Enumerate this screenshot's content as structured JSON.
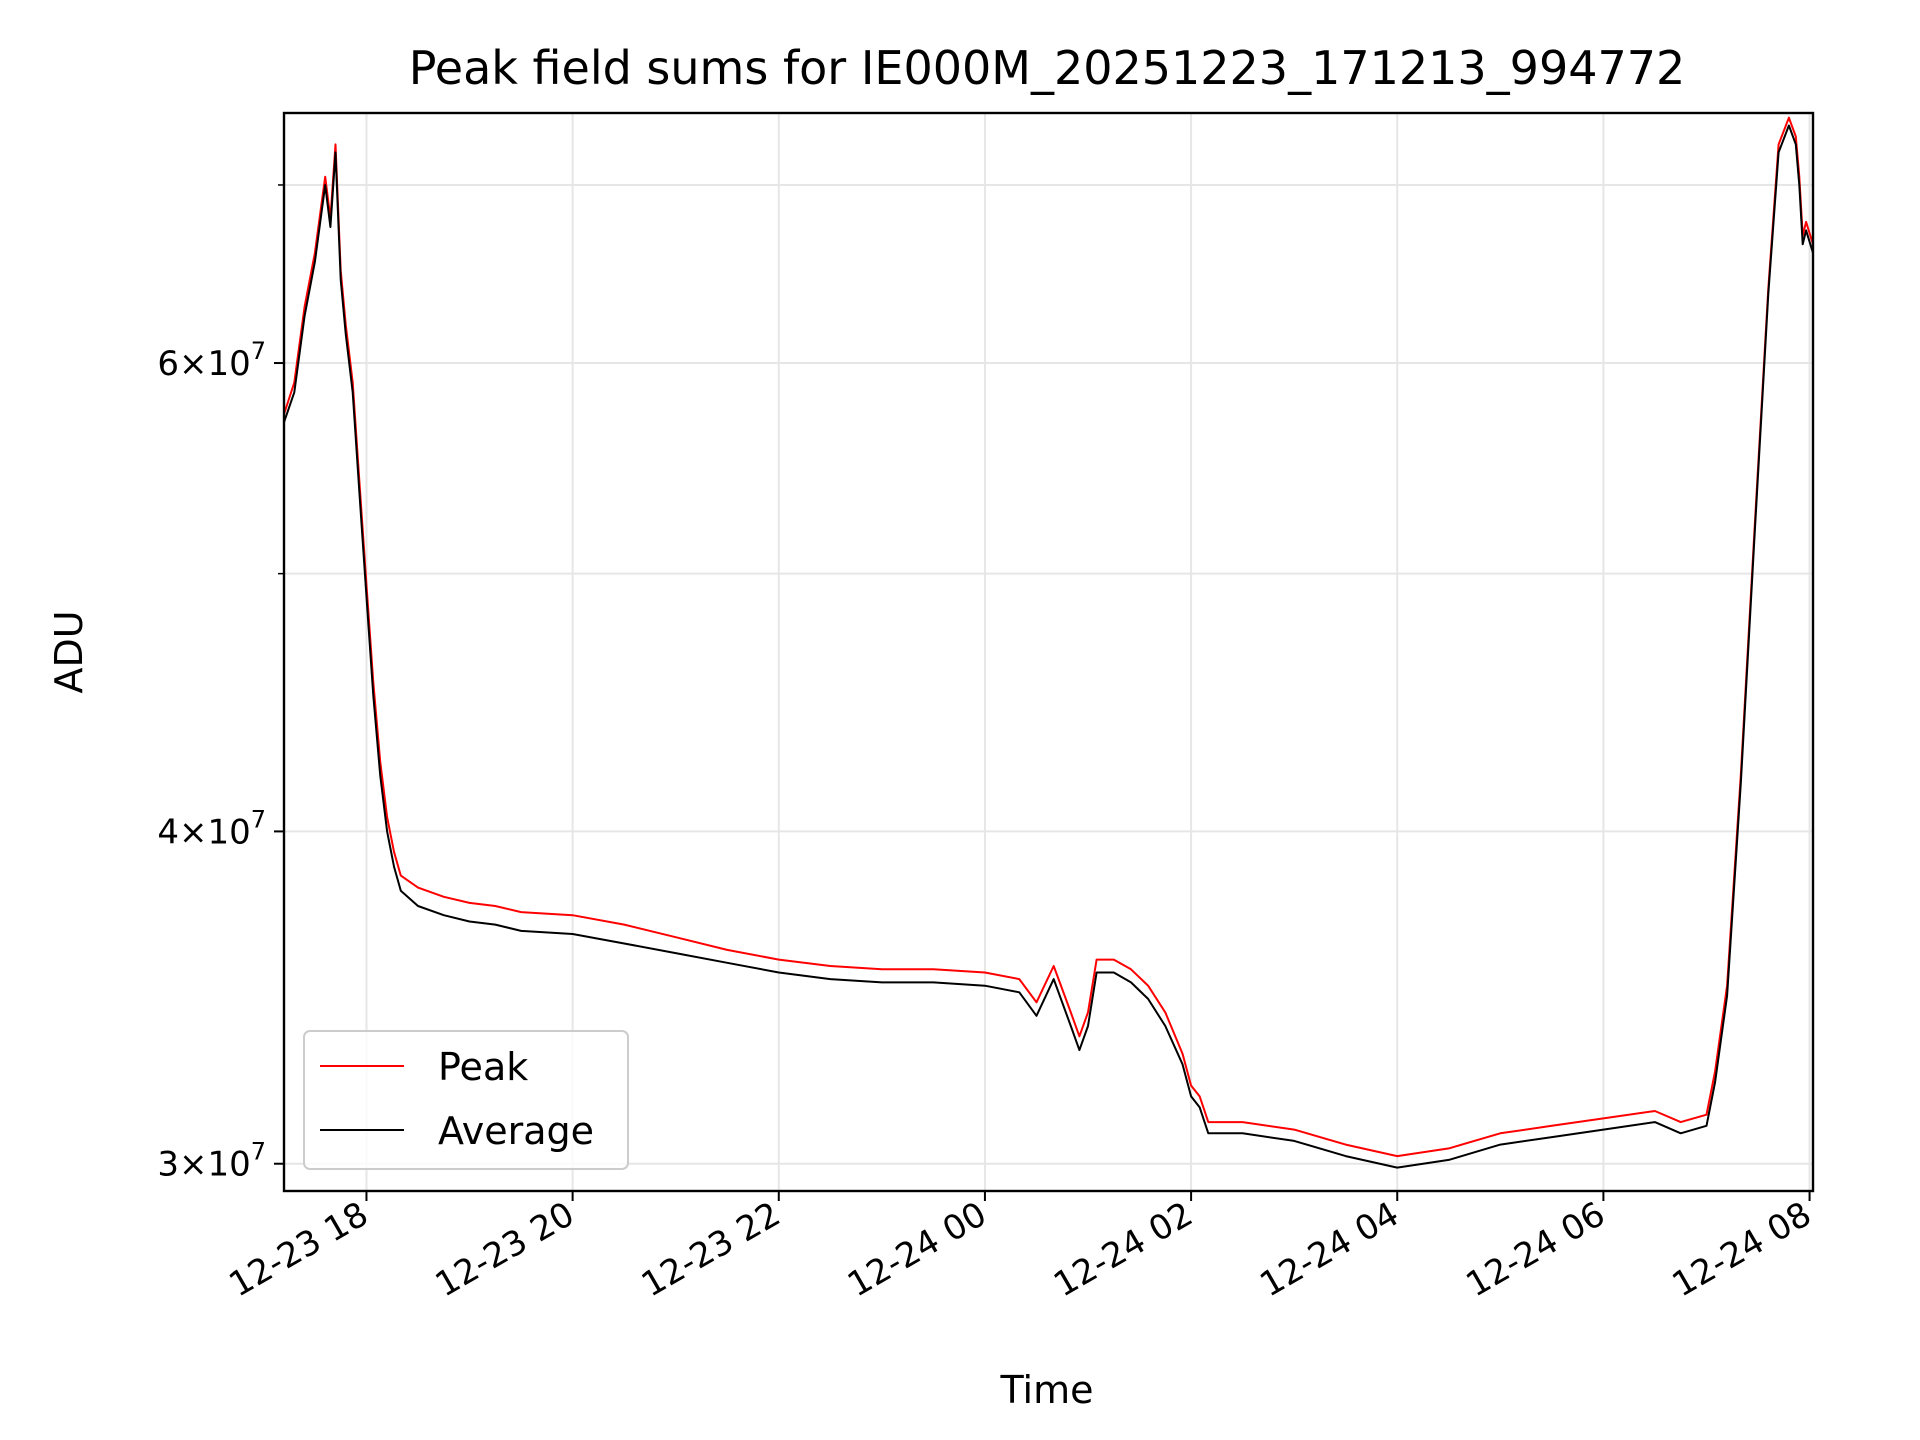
{
  "chart_data": {
    "type": "line",
    "title": "Peak field sums for IE000M_20251223_171213_994772",
    "xlabel": "Time",
    "ylabel": "ADU",
    "y_scale": "log",
    "grid": true,
    "legend_position": "lower-left",
    "xlim": [
      "2025-12-23 17:12",
      "2025-12-24 08:02"
    ],
    "ylim": [
      29300000,
      74500000
    ],
    "x_ticks": [
      {
        "t": "2025-12-23 18:00",
        "label": "12-23 18"
      },
      {
        "t": "2025-12-23 20:00",
        "label": "12-23 20"
      },
      {
        "t": "2025-12-23 22:00",
        "label": "12-23 22"
      },
      {
        "t": "2025-12-24 00:00",
        "label": "12-24 00"
      },
      {
        "t": "2025-12-24 02:00",
        "label": "12-24 02"
      },
      {
        "t": "2025-12-24 04:00",
        "label": "12-24 04"
      },
      {
        "t": "2025-12-24 06:00",
        "label": "12-24 06"
      },
      {
        "t": "2025-12-24 08:00",
        "label": "12-24 08"
      }
    ],
    "y_major_ticks": [
      {
        "value": 30000000,
        "base": "3",
        "exp": "7"
      },
      {
        "value": 40000000,
        "base": "4",
        "exp": "7"
      },
      {
        "value": 60000000,
        "base": "6",
        "exp": "7"
      }
    ],
    "y_minor_ticks": [
      50000000,
      70000000
    ],
    "series": [
      {
        "name": "Peak",
        "color": "#ff0000",
        "points": [
          [
            "2025-12-23 17:12",
            57400000
          ],
          [
            "2025-12-23 17:18",
            59000000
          ],
          [
            "2025-12-23 17:24",
            63000000
          ],
          [
            "2025-12-23 17:30",
            66000000
          ],
          [
            "2025-12-23 17:36",
            70500000
          ],
          [
            "2025-12-23 17:39",
            68000000
          ],
          [
            "2025-12-23 17:42",
            72500000
          ],
          [
            "2025-12-23 17:45",
            65000000
          ],
          [
            "2025-12-23 17:48",
            62000000
          ],
          [
            "2025-12-23 17:52",
            59000000
          ],
          [
            "2025-12-23 17:56",
            54000000
          ],
          [
            "2025-12-23 18:00",
            49500000
          ],
          [
            "2025-12-23 18:04",
            45500000
          ],
          [
            "2025-12-23 18:08",
            42500000
          ],
          [
            "2025-12-23 18:12",
            40500000
          ],
          [
            "2025-12-23 18:16",
            39300000
          ],
          [
            "2025-12-23 18:20",
            38500000
          ],
          [
            "2025-12-23 18:30",
            38100000
          ],
          [
            "2025-12-23 18:45",
            37800000
          ],
          [
            "2025-12-23 19:00",
            37600000
          ],
          [
            "2025-12-23 19:15",
            37500000
          ],
          [
            "2025-12-23 19:30",
            37300000
          ],
          [
            "2025-12-23 20:00",
            37200000
          ],
          [
            "2025-12-23 20:30",
            36900000
          ],
          [
            "2025-12-23 21:00",
            36500000
          ],
          [
            "2025-12-23 21:30",
            36100000
          ],
          [
            "2025-12-23 22:00",
            35800000
          ],
          [
            "2025-12-23 22:30",
            35600000
          ],
          [
            "2025-12-23 23:00",
            35500000
          ],
          [
            "2025-12-23 23:30",
            35500000
          ],
          [
            "2025-12-24 00:00",
            35400000
          ],
          [
            "2025-12-24 00:20",
            35200000
          ],
          [
            "2025-12-24 00:30",
            34500000
          ],
          [
            "2025-12-24 00:40",
            35600000
          ],
          [
            "2025-12-24 00:50",
            34200000
          ],
          [
            "2025-12-24 00:55",
            33500000
          ],
          [
            "2025-12-24 01:00",
            34200000
          ],
          [
            "2025-12-24 01:05",
            35800000
          ],
          [
            "2025-12-24 01:15",
            35800000
          ],
          [
            "2025-12-24 01:25",
            35500000
          ],
          [
            "2025-12-24 01:35",
            35000000
          ],
          [
            "2025-12-24 01:45",
            34200000
          ],
          [
            "2025-12-24 01:55",
            33000000
          ],
          [
            "2025-12-24 02:00",
            32100000
          ],
          [
            "2025-12-24 02:05",
            31800000
          ],
          [
            "2025-12-24 02:10",
            31100000
          ],
          [
            "2025-12-24 02:30",
            31100000
          ],
          [
            "2025-12-24 03:00",
            30900000
          ],
          [
            "2025-12-24 03:30",
            30500000
          ],
          [
            "2025-12-24 04:00",
            30200000
          ],
          [
            "2025-12-24 04:30",
            30400000
          ],
          [
            "2025-12-24 05:00",
            30800000
          ],
          [
            "2025-12-24 05:30",
            31000000
          ],
          [
            "2025-12-24 06:00",
            31200000
          ],
          [
            "2025-12-24 06:30",
            31400000
          ],
          [
            "2025-12-24 06:45",
            31100000
          ],
          [
            "2025-12-24 07:00",
            31300000
          ],
          [
            "2025-12-24 07:05",
            32500000
          ],
          [
            "2025-12-24 07:12",
            35000000
          ],
          [
            "2025-12-24 07:20",
            42000000
          ],
          [
            "2025-12-24 07:28",
            52000000
          ],
          [
            "2025-12-24 07:36",
            64000000
          ],
          [
            "2025-12-24 07:42",
            72500000
          ],
          [
            "2025-12-24 07:48",
            74200000
          ],
          [
            "2025-12-24 07:52",
            73000000
          ],
          [
            "2025-12-24 07:54",
            70500000
          ],
          [
            "2025-12-24 07:56",
            67000000
          ],
          [
            "2025-12-24 07:58",
            67800000
          ],
          [
            "2025-12-24 08:02",
            66500000
          ]
        ]
      },
      {
        "name": "Average",
        "color": "#000000",
        "points": [
          [
            "2025-12-23 17:12",
            57000000
          ],
          [
            "2025-12-23 17:18",
            58500000
          ],
          [
            "2025-12-23 17:24",
            62500000
          ],
          [
            "2025-12-23 17:30",
            65500000
          ],
          [
            "2025-12-23 17:36",
            70000000
          ],
          [
            "2025-12-23 17:39",
            67500000
          ],
          [
            "2025-12-23 17:42",
            72000000
          ],
          [
            "2025-12-23 17:45",
            64500000
          ],
          [
            "2025-12-23 17:48",
            61500000
          ],
          [
            "2025-12-23 17:52",
            58500000
          ],
          [
            "2025-12-23 17:56",
            53500000
          ],
          [
            "2025-12-23 18:00",
            49000000
          ],
          [
            "2025-12-23 18:04",
            45000000
          ],
          [
            "2025-12-23 18:08",
            42000000
          ],
          [
            "2025-12-23 18:12",
            40000000
          ],
          [
            "2025-12-23 18:16",
            38800000
          ],
          [
            "2025-12-23 18:20",
            38000000
          ],
          [
            "2025-12-23 18:30",
            37500000
          ],
          [
            "2025-12-23 18:45",
            37200000
          ],
          [
            "2025-12-23 19:00",
            37000000
          ],
          [
            "2025-12-23 19:15",
            36900000
          ],
          [
            "2025-12-23 19:30",
            36700000
          ],
          [
            "2025-12-23 20:00",
            36600000
          ],
          [
            "2025-12-23 20:30",
            36300000
          ],
          [
            "2025-12-23 21:00",
            36000000
          ],
          [
            "2025-12-23 21:30",
            35700000
          ],
          [
            "2025-12-23 22:00",
            35400000
          ],
          [
            "2025-12-23 22:30",
            35200000
          ],
          [
            "2025-12-23 23:00",
            35100000
          ],
          [
            "2025-12-23 23:30",
            35100000
          ],
          [
            "2025-12-24 00:00",
            35000000
          ],
          [
            "2025-12-24 00:20",
            34800000
          ],
          [
            "2025-12-24 00:30",
            34100000
          ],
          [
            "2025-12-24 00:40",
            35200000
          ],
          [
            "2025-12-24 00:50",
            33800000
          ],
          [
            "2025-12-24 00:55",
            33100000
          ],
          [
            "2025-12-24 01:00",
            33800000
          ],
          [
            "2025-12-24 01:05",
            35400000
          ],
          [
            "2025-12-24 01:15",
            35400000
          ],
          [
            "2025-12-24 01:25",
            35100000
          ],
          [
            "2025-12-24 01:35",
            34600000
          ],
          [
            "2025-12-24 01:45",
            33800000
          ],
          [
            "2025-12-24 01:55",
            32700000
          ],
          [
            "2025-12-24 02:00",
            31800000
          ],
          [
            "2025-12-24 02:05",
            31500000
          ],
          [
            "2025-12-24 02:10",
            30800000
          ],
          [
            "2025-12-24 02:30",
            30800000
          ],
          [
            "2025-12-24 03:00",
            30600000
          ],
          [
            "2025-12-24 03:30",
            30200000
          ],
          [
            "2025-12-24 04:00",
            29900000
          ],
          [
            "2025-12-24 04:30",
            30100000
          ],
          [
            "2025-12-24 05:00",
            30500000
          ],
          [
            "2025-12-24 05:30",
            30700000
          ],
          [
            "2025-12-24 06:00",
            30900000
          ],
          [
            "2025-12-24 06:30",
            31100000
          ],
          [
            "2025-12-24 06:45",
            30800000
          ],
          [
            "2025-12-24 07:00",
            31000000
          ],
          [
            "2025-12-24 07:05",
            32200000
          ],
          [
            "2025-12-24 07:12",
            34700000
          ],
          [
            "2025-12-24 07:20",
            41700000
          ],
          [
            "2025-12-24 07:28",
            51700000
          ],
          [
            "2025-12-24 07:36",
            63700000
          ],
          [
            "2025-12-24 07:42",
            72000000
          ],
          [
            "2025-12-24 07:48",
            73700000
          ],
          [
            "2025-12-24 07:52",
            72500000
          ],
          [
            "2025-12-24 07:54",
            70000000
          ],
          [
            "2025-12-24 07:56",
            66500000
          ],
          [
            "2025-12-24 07:58",
            67300000
          ],
          [
            "2025-12-24 08:02",
            66000000
          ]
        ]
      }
    ]
  }
}
